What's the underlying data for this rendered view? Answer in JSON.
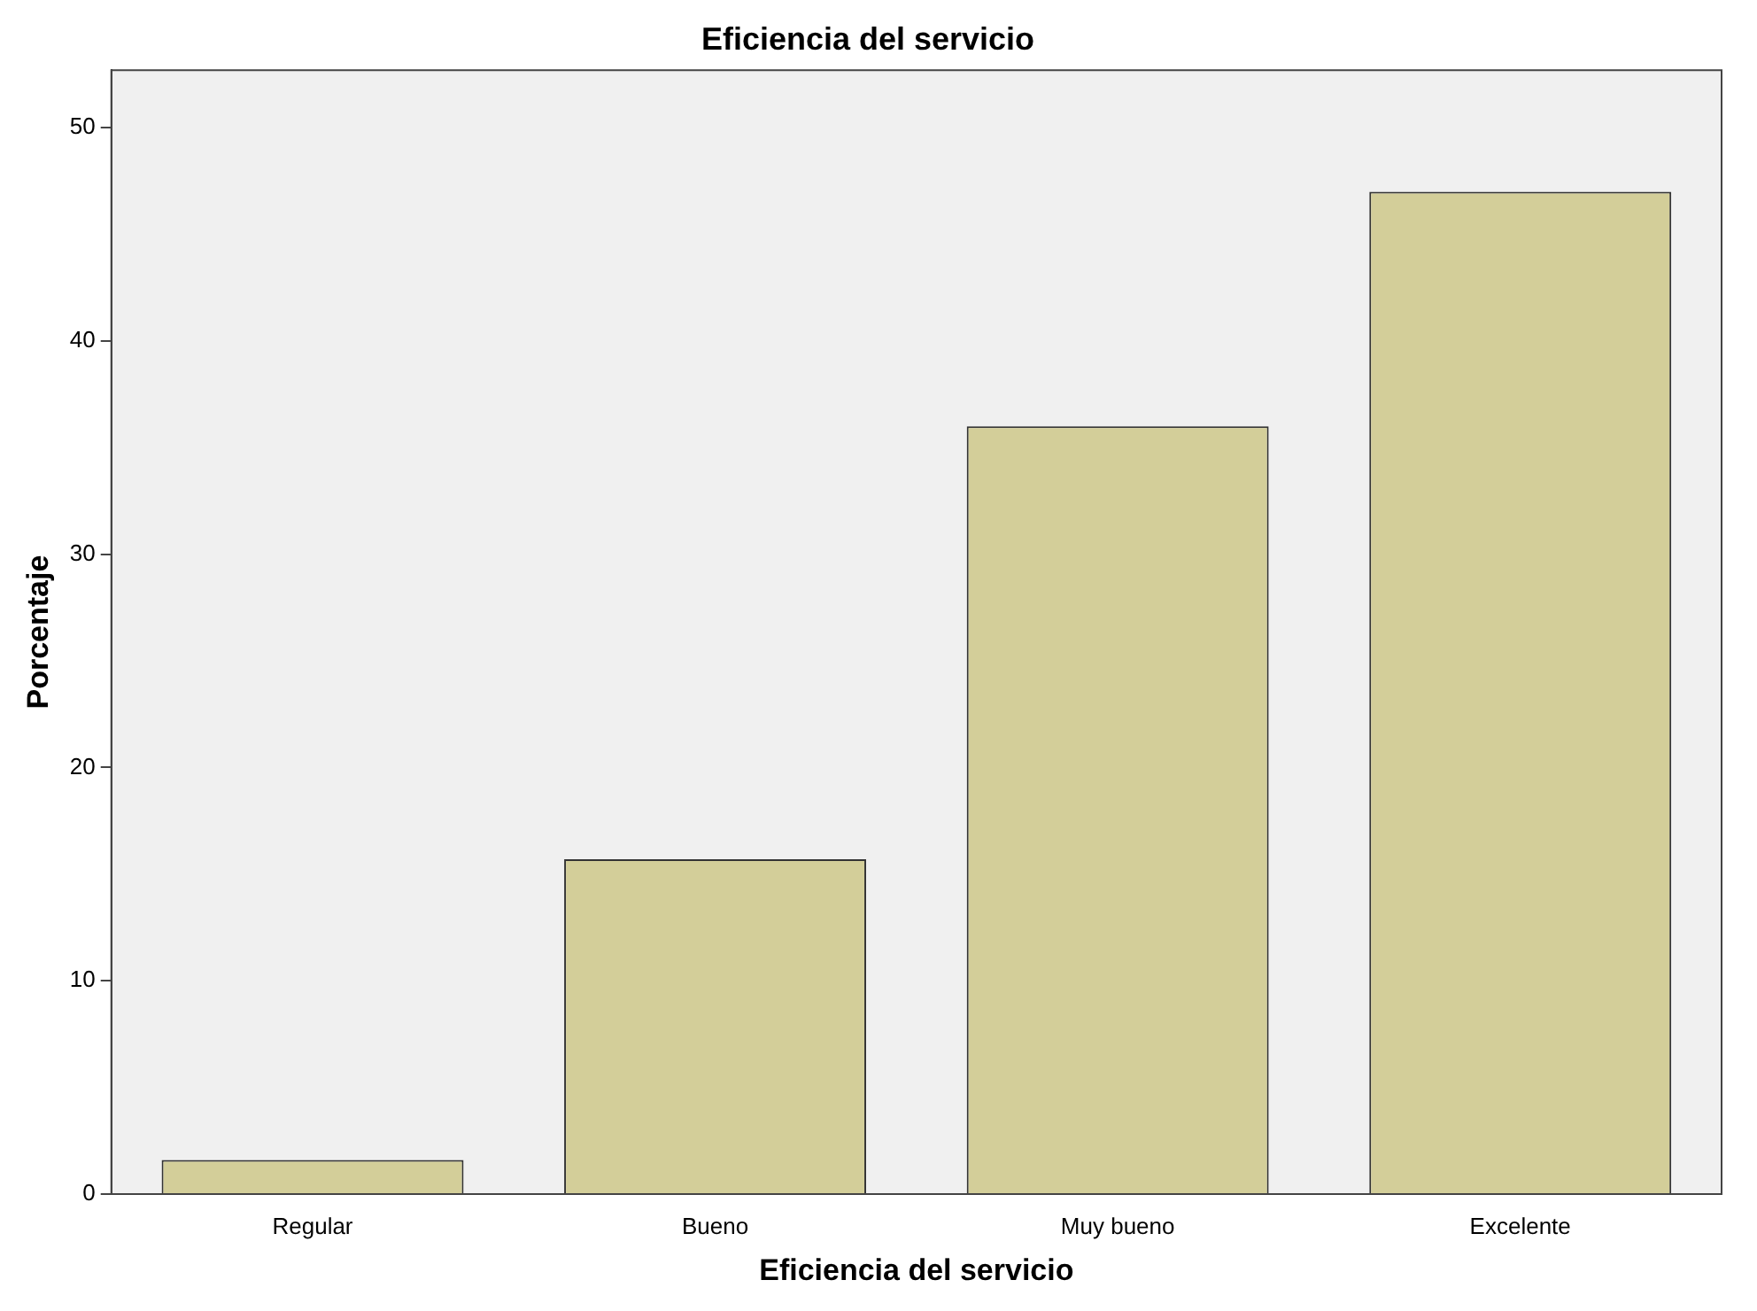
{
  "chart_data": {
    "type": "bar",
    "title": "Eficiencia del servicio",
    "xlabel": "Eficiencia del servicio",
    "ylabel": "Porcentaje",
    "categories": [
      "Regular",
      "Bueno",
      "Muy bueno",
      "Excelente"
    ],
    "values": [
      1.6,
      15.7,
      36.0,
      47.0
    ],
    "color": "#d3ce99",
    "ylim": [
      0,
      52.7
    ],
    "yticks": [
      0,
      10,
      20,
      30,
      40,
      50
    ],
    "grid": false,
    "legend": false
  }
}
